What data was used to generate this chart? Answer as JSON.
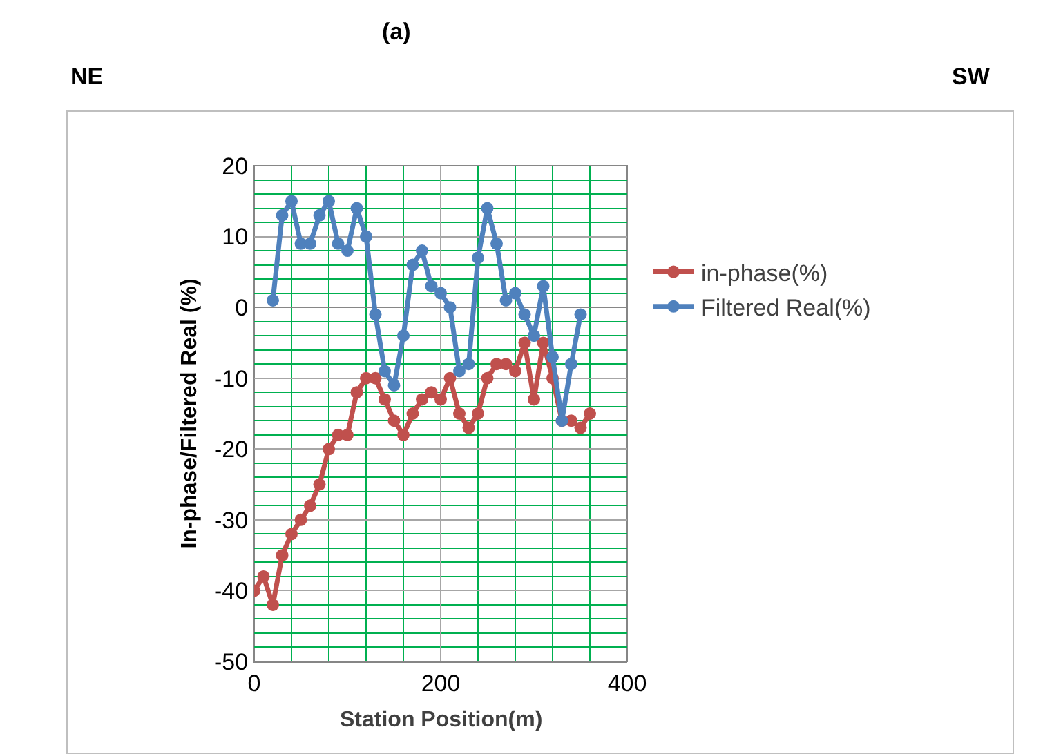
{
  "chart_data": {
    "type": "line",
    "title": "(a)",
    "xlabel": "Station Position(m)",
    "ylabel": "In-phase/Filtered Real (%)",
    "annotations": [
      "NE",
      "SW"
    ],
    "xlim": [
      0,
      400
    ],
    "xticks": [
      0,
      {
        "value": 40,
        "label": null
      },
      {
        "value": 80,
        "label": null
      },
      {
        "value": 120,
        "label": null
      },
      {
        "value": 160,
        "label": null
      },
      200,
      {
        "value": 240,
        "label": null
      },
      {
        "value": 280,
        "label": null
      },
      {
        "value": 320,
        "label": null
      },
      {
        "value": 360,
        "label": null
      },
      400
    ],
    "ylim": [
      -50,
      20
    ],
    "yticks": [
      -50,
      {
        "value": -48,
        "label": null
      },
      {
        "value": -46,
        "label": null
      },
      {
        "value": -44,
        "label": null
      },
      {
        "value": -42,
        "label": null
      },
      -40,
      {
        "value": -38,
        "label": null
      },
      {
        "value": -36,
        "label": null
      },
      {
        "value": -34,
        "label": null
      },
      {
        "value": -32,
        "label": null
      },
      -30,
      {
        "value": -28,
        "label": null
      },
      {
        "value": -26,
        "label": null
      },
      {
        "value": -24,
        "label": null
      },
      {
        "value": -22,
        "label": null
      },
      -20,
      {
        "value": -18,
        "label": null
      },
      {
        "value": -16,
        "label": null
      },
      {
        "value": -14,
        "label": null
      },
      {
        "value": -12,
        "label": null
      },
      -10,
      {
        "value": -8,
        "label": null
      },
      {
        "value": -6,
        "label": null
      },
      {
        "value": -4,
        "label": null
      },
      {
        "value": -2,
        "label": null
      },
      0,
      {
        "value": 2,
        "label": null
      },
      {
        "value": 4,
        "label": null
      },
      {
        "value": 6,
        "label": null
      },
      {
        "value": 8,
        "label": null
      },
      10,
      {
        "value": 12,
        "label": null
      },
      {
        "value": 14,
        "label": null
      },
      {
        "value": 16,
        "label": null
      },
      {
        "value": 18,
        "label": null
      },
      20
    ],
    "grid": true,
    "legend": "right",
    "marker": "circle",
    "line_style": "solid",
    "series": [
      {
        "name": "in-phase(%)",
        "color": "#c0504d",
        "x": [
          0,
          10,
          20,
          30,
          40,
          50,
          60,
          70,
          80,
          90,
          100,
          110,
          120,
          130,
          140,
          150,
          160,
          170,
          180,
          190,
          200,
          210,
          220,
          230,
          240,
          250,
          260,
          270,
          280,
          290,
          300,
          310,
          320,
          330,
          340,
          350,
          360
        ],
        "values": [
          -40,
          -38,
          -42,
          -35,
          -32,
          -30,
          -28,
          -25,
          -20,
          -18,
          -18,
          -12,
          -10,
          -10,
          -13,
          -16,
          -18,
          -15,
          -13,
          -12,
          -13,
          -10,
          -15,
          -17,
          -15,
          -10,
          -8,
          -8,
          -9,
          -5,
          -13,
          -5,
          -10,
          -16,
          -16,
          -17,
          -15
        ]
      },
      {
        "name": "Filtered Real(%)",
        "color": "#4f81bd",
        "x": [
          20,
          30,
          40,
          50,
          60,
          70,
          80,
          90,
          100,
          110,
          120,
          130,
          140,
          150,
          160,
          170,
          180,
          190,
          200,
          210,
          220,
          230,
          240,
          250,
          260,
          270,
          280,
          290,
          300,
          310,
          320,
          330,
          340,
          350
        ],
        "values": [
          1,
          13,
          15,
          9,
          9,
          13,
          15,
          9,
          8,
          14,
          10,
          -1,
          -9,
          -11,
          -4,
          6,
          8,
          3,
          2,
          0,
          -9,
          -8,
          7,
          14,
          9,
          1,
          2,
          -1,
          -4,
          3,
          -7,
          -16,
          -8,
          -1
        ]
      }
    ]
  }
}
